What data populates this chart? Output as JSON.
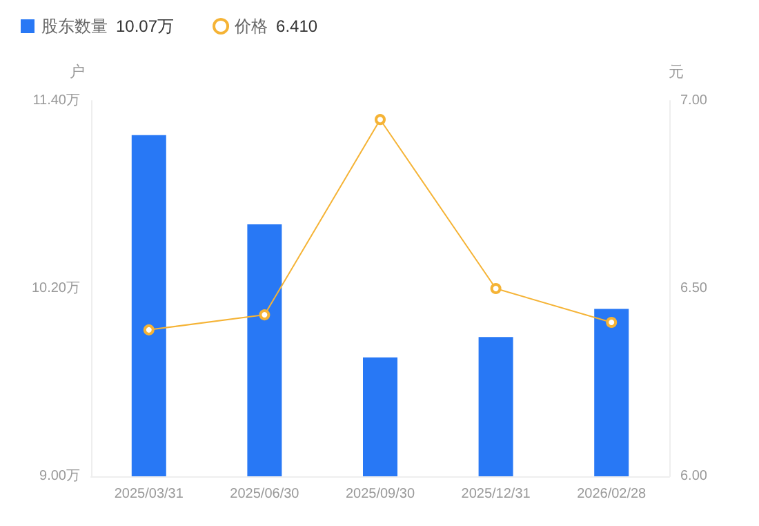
{
  "chart_data": {
    "type": "bar",
    "categories": [
      "2025/03/31",
      "2025/06/30",
      "2025/09/30",
      "2025/12/31",
      "2026/02/28"
    ],
    "series": [
      {
        "name": "股东数量",
        "color": "#2878f5",
        "values": [
          11.18,
          10.61,
          9.76,
          9.89,
          10.07
        ]
      },
      {
        "name": "价格",
        "type": "line",
        "axis": "y2",
        "color": "#f5b335",
        "marker": "circle",
        "values": [
          6.39,
          6.43,
          6.95,
          6.5,
          6.41
        ]
      }
    ],
    "ylabel": "户",
    "y2label": "元",
    "ylim": [
      9,
      11.4
    ],
    "yticks": [
      {
        "value": 9,
        "label": "9.00万"
      },
      {
        "value": 10.2,
        "label": "10.20万"
      },
      {
        "value": 11.4,
        "label": "11.40万"
      }
    ],
    "y2lim": [
      6,
      7
    ],
    "y2ticks": [
      {
        "value": 6,
        "label": "6.00"
      },
      {
        "value": 6.5,
        "label": "6.50"
      },
      {
        "value": 7,
        "label": "7.00"
      }
    ],
    "annotations": [
      "10.07万",
      "6.410"
    ],
    "legend": "top left",
    "grid": false
  }
}
